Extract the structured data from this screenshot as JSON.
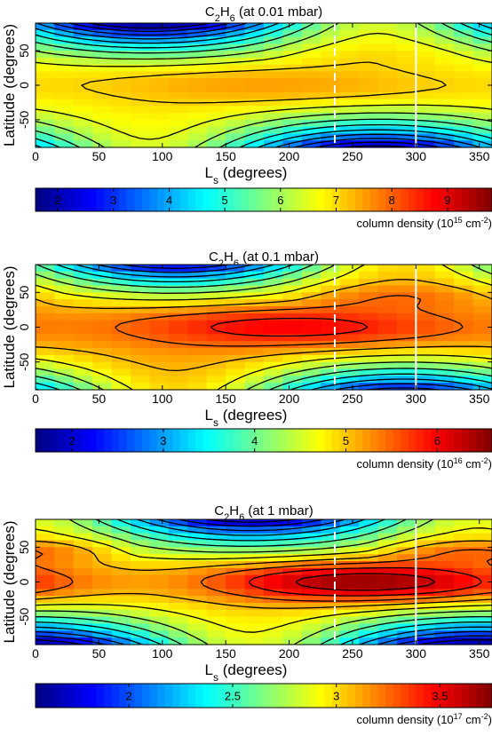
{
  "chart_data": [
    {
      "type": "heatmap",
      "title": "C2H6 (at 0.01 mbar)",
      "title_parts": {
        "species": "C",
        "sub1": "2",
        "mid": "H",
        "sub2": "6",
        "rest": " (at 0.01 mbar)"
      },
      "xlabel": "Ls (degrees)",
      "xlabel_parts": {
        "main": "L",
        "sub": "s",
        "rest": " (degrees)"
      },
      "ylabel": "Latitude (degrees)",
      "xlim": [
        0,
        360
      ],
      "ylim": [
        -90,
        90
      ],
      "xticks": [
        0,
        50,
        100,
        150,
        200,
        250,
        300,
        350
      ],
      "yticks": [
        50,
        0,
        -50
      ],
      "vlines": [
        {
          "x": 236,
          "style": "dashed",
          "color": "#ffffff"
        },
        {
          "x": 300,
          "style": "solid",
          "color": "#ffffff"
        }
      ],
      "colorbar": {
        "range": [
          1.6,
          9.8
        ],
        "ticks": [
          2,
          3,
          4,
          5,
          6,
          7,
          8,
          9
        ],
        "label": "column density (10^15 cm^-2)",
        "label_parts": {
          "main": "column density (10",
          "sup1": "15",
          "mid": " cm",
          "sup2": "-2",
          "end": ")"
        }
      },
      "field": {
        "mean": 6.9,
        "north_amp": 5.6,
        "south_amp": 5.0,
        "equator_peak": 0.6,
        "seasonal_phase": 90,
        "grid_x": 24,
        "grid_y": 18
      },
      "contour_levels": 14
    },
    {
      "type": "heatmap",
      "title": "C2H6 (at 0.1 mbar)",
      "title_parts": {
        "species": "C",
        "sub1": "2",
        "mid": "H",
        "sub2": "6",
        "rest": " (at 0.1 mbar)"
      },
      "xlabel": "Ls (degrees)",
      "xlabel_parts": {
        "main": "L",
        "sub": "s",
        "rest": " (degrees)"
      },
      "ylabel": "Latitude (degrees)",
      "xlim": [
        0,
        360
      ],
      "ylim": [
        -90,
        90
      ],
      "xticks": [
        0,
        50,
        100,
        150,
        200,
        250,
        300,
        350
      ],
      "yticks": [
        50,
        0,
        -50
      ],
      "vlines": [
        {
          "x": 236,
          "style": "dashed",
          "color": "#ffffff"
        },
        {
          "x": 300,
          "style": "solid",
          "color": "#ffffff"
        }
      ],
      "colorbar": {
        "range": [
          1.6,
          6.6
        ],
        "ticks": [
          2,
          3,
          4,
          5,
          6
        ],
        "label": "column density (10^16 cm^-2)",
        "label_parts": {
          "main": "column density (10",
          "sup1": "16",
          "mid": " cm",
          "sup2": "-2",
          "end": ")"
        }
      },
      "field": {
        "mean": 5.2,
        "north_amp": 3.2,
        "south_amp": 3.0,
        "equator_peak": 0.8,
        "seasonal_phase": 110,
        "grid_x": 24,
        "grid_y": 18
      },
      "contour_levels": 12
    },
    {
      "type": "heatmap",
      "title": "C2H6 (at 1 mbar)",
      "title_parts": {
        "species": "C",
        "sub1": "2",
        "mid": "H",
        "sub2": "6",
        "rest": " (at 1 mbar)"
      },
      "xlabel": "Ls (degrees)",
      "xlabel_parts": {
        "main": "L",
        "sub": "s",
        "rest": " (degrees)"
      },
      "ylabel": "Latitude (degrees)",
      "xlim": [
        0,
        360
      ],
      "ylim": [
        -90,
        90
      ],
      "xticks": [
        0,
        50,
        100,
        150,
        200,
        250,
        300,
        350
      ],
      "yticks": [
        50,
        0,
        -50
      ],
      "vlines": [
        {
          "x": 236,
          "style": "dashed",
          "color": "#ffffff"
        },
        {
          "x": 300,
          "style": "solid",
          "color": "#ffffff"
        }
      ],
      "colorbar": {
        "range": [
          1.55,
          3.75
        ],
        "ticks": [
          2,
          2.5,
          3,
          3.5
        ],
        "label": "column density (10^17 cm^-2)",
        "label_parts": {
          "main": "column density (10",
          "sup1": "17",
          "mid": " cm",
          "sup2": "-2",
          "end": ")"
        }
      },
      "field": {
        "mean": 3.0,
        "north_amp": 1.4,
        "south_amp": 1.5,
        "equator_peak": 0.7,
        "seasonal_phase": 170,
        "grid_x": 24,
        "grid_y": 18
      },
      "contour_levels": 12
    }
  ]
}
